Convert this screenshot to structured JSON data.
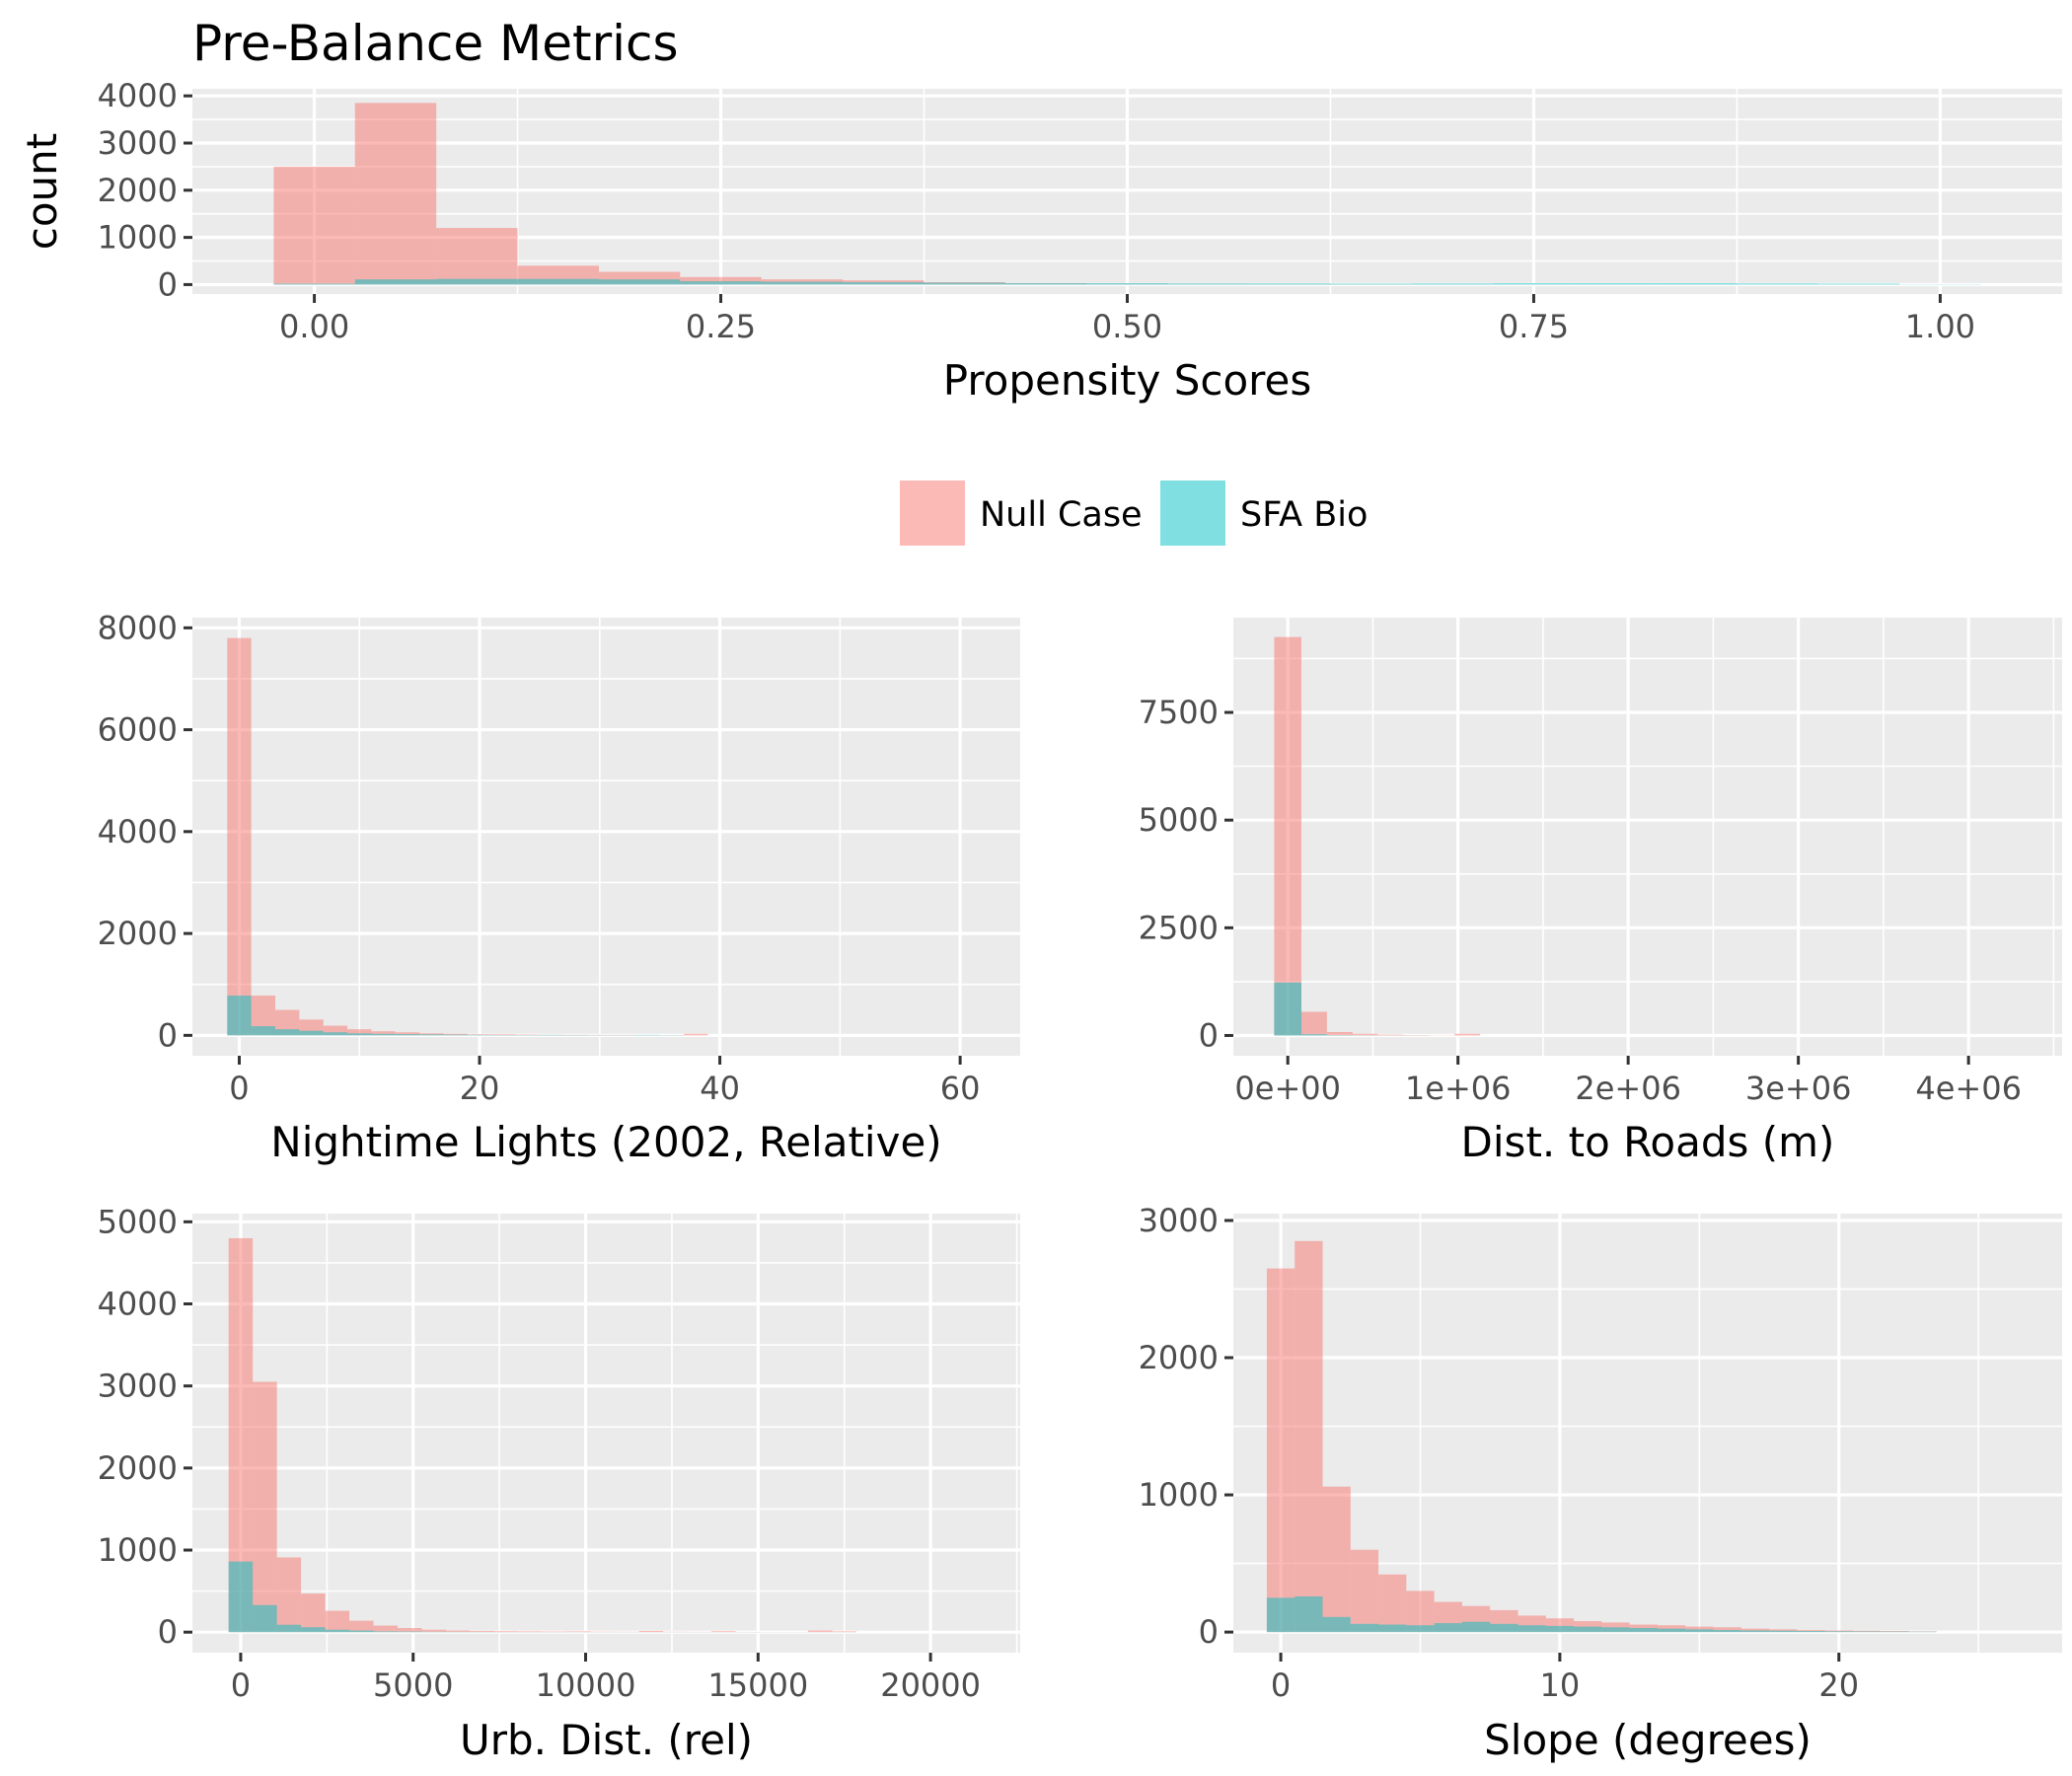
{
  "figure": {
    "title": "Pre-Balance Metrics",
    "legend": {
      "placement": "middle",
      "entries": [
        {
          "label": "Null Case",
          "color": "#F8766D"
        },
        {
          "label": "SFA Bio",
          "color": "#00BFC4"
        }
      ]
    }
  },
  "chart_data": [
    {
      "type": "bar",
      "subtype": "histogram",
      "xlabel": "Propensity Scores",
      "ylabel": "count",
      "xlim": [
        -0.075,
        1.075
      ],
      "ylim": [
        -200,
        4150
      ],
      "xticks": [
        0.0,
        0.25,
        0.5,
        0.75,
        1.0
      ],
      "xticklabels": [
        "0.00",
        "0.25",
        "0.50",
        "0.75",
        "1.00"
      ],
      "yticks": [
        0,
        1000,
        2000,
        3000,
        4000
      ],
      "yticklabels": [
        "0",
        "1000",
        "2000",
        "3000",
        "4000"
      ],
      "bin_edges": [
        -0.025,
        0.025,
        0.075,
        0.125,
        0.175,
        0.225,
        0.275,
        0.325,
        0.375,
        0.425,
        0.475,
        0.525,
        0.575,
        0.625,
        0.675,
        0.725,
        0.775,
        0.825,
        0.875,
        0.925,
        0.975,
        1.025
      ],
      "series": [
        {
          "name": "Null Case",
          "values": [
            2500,
            3850,
            1200,
            400,
            270,
            160,
            110,
            90,
            50,
            30,
            20,
            15,
            10,
            8,
            6,
            5,
            4,
            4,
            3,
            2,
            1
          ]
        },
        {
          "name": "SFA Bio",
          "values": [
            20,
            110,
            120,
            120,
            110,
            70,
            60,
            50,
            40,
            30,
            30,
            25,
            25,
            20,
            25,
            30,
            30,
            30,
            25,
            20,
            5
          ]
        }
      ]
    },
    {
      "type": "bar",
      "subtype": "histogram",
      "xlabel": "Nightime Lights (2002, Relative)",
      "ylabel": "",
      "xlim": [
        -3.9,
        65
      ],
      "ylim": [
        -400,
        8200
      ],
      "xticks": [
        0,
        20,
        40,
        60
      ],
      "xticklabels": [
        "0",
        "20",
        "40",
        "60"
      ],
      "yticks": [
        0,
        2000,
        4000,
        6000,
        8000
      ],
      "yticklabels": [
        "0",
        "2000",
        "4000",
        "6000",
        "8000"
      ],
      "bin_edges": [
        -1,
        1,
        3,
        5,
        7,
        9,
        11,
        13,
        15,
        17,
        19,
        21,
        23,
        25,
        27,
        29,
        31,
        33,
        35,
        37,
        39
      ],
      "series": [
        {
          "name": "Null Case",
          "values": [
            7800,
            780,
            500,
            310,
            190,
            120,
            80,
            60,
            40,
            30,
            20,
            20,
            15,
            10,
            10,
            10,
            10,
            5,
            5,
            30
          ]
        },
        {
          "name": "SFA Bio",
          "values": [
            780,
            180,
            120,
            90,
            60,
            40,
            30,
            25,
            20,
            15,
            10,
            8,
            6,
            10,
            8,
            5,
            5,
            10,
            5,
            0
          ]
        }
      ]
    },
    {
      "type": "bar",
      "subtype": "histogram",
      "xlabel": "Dist. to Roads (m)",
      "ylabel": "",
      "xlim": [
        -320000,
        4550000
      ],
      "ylim": [
        -470,
        9700
      ],
      "xticks": [
        0,
        1000000,
        2000000,
        3000000,
        4000000
      ],
      "xticklabels": [
        "0e+00",
        "1e+06",
        "2e+06",
        "3e+06",
        "4e+06"
      ],
      "yticks": [
        0,
        2500,
        5000,
        7500
      ],
      "yticklabels": [
        "0",
        "2500",
        "5000",
        "7500"
      ],
      "bin_edges": [
        -80000,
        80000,
        230000,
        380000,
        530000,
        680000,
        830000,
        980000,
        1130000
      ],
      "series": [
        {
          "name": "Null Case",
          "values": [
            9250,
            550,
            80,
            40,
            20,
            10,
            5,
            40
          ]
        },
        {
          "name": "SFA Bio",
          "values": [
            1230,
            30,
            10,
            5,
            3,
            2,
            0,
            0
          ]
        }
      ]
    },
    {
      "type": "bar",
      "subtype": "histogram",
      "xlabel": "Urb. Dist. (rel)",
      "ylabel": "",
      "xlim": [
        -1400,
        22600
      ],
      "ylim": [
        -250,
        5100
      ],
      "xticks": [
        0,
        5000,
        10000,
        15000,
        20000
      ],
      "xticklabels": [
        "0",
        "5000",
        "10000",
        "15000",
        "20000"
      ],
      "yticks": [
        0,
        1000,
        2000,
        3000,
        4000,
        5000
      ],
      "yticklabels": [
        "0",
        "1000",
        "2000",
        "3000",
        "4000",
        "5000"
      ],
      "bin_edges": [
        -350,
        350,
        1050,
        1750,
        2450,
        3150,
        3850,
        4550,
        5250,
        5950,
        6650,
        7350,
        8050,
        8750,
        9450,
        10150,
        10850,
        11550,
        12250,
        12950,
        13650,
        14350,
        15050,
        15750,
        16450,
        17150,
        17850
      ],
      "series": [
        {
          "name": "Null Case",
          "values": [
            4800,
            3050,
            910,
            470,
            260,
            140,
            80,
            50,
            30,
            20,
            15,
            12,
            10,
            8,
            10,
            6,
            5,
            15,
            5,
            4,
            12,
            3,
            2,
            2,
            20,
            10
          ]
        },
        {
          "name": "SFA Bio",
          "values": [
            860,
            330,
            90,
            60,
            30,
            20,
            10,
            8,
            5,
            4,
            3,
            2,
            2,
            2,
            1,
            1,
            1,
            1,
            1,
            1,
            1,
            1,
            1,
            1,
            1,
            1
          ]
        }
      ]
    },
    {
      "type": "bar",
      "subtype": "histogram",
      "xlabel": "Slope (degrees)",
      "ylabel": "",
      "xlim": [
        -1.7,
        28
      ],
      "ylim": [
        -150,
        3050
      ],
      "xticks": [
        0,
        10,
        20
      ],
      "xticklabels": [
        "0",
        "10",
        "20"
      ],
      "yticks": [
        0,
        1000,
        2000,
        3000
      ],
      "yticklabels": [
        "0",
        "1000",
        "2000",
        "3000"
      ],
      "bin_edges": [
        -0.5,
        0.5,
        1.5,
        2.5,
        3.5,
        4.5,
        5.5,
        6.5,
        7.5,
        8.5,
        9.5,
        10.5,
        11.5,
        12.5,
        13.5,
        14.5,
        15.5,
        16.5,
        17.5,
        18.5,
        19.5,
        20.5,
        21.5,
        22.5,
        23.5
      ],
      "series": [
        {
          "name": "Null Case",
          "values": [
            2650,
            2850,
            1060,
            600,
            420,
            300,
            220,
            190,
            160,
            120,
            100,
            80,
            70,
            55,
            50,
            40,
            35,
            25,
            20,
            15,
            12,
            10,
            8,
            5
          ]
        },
        {
          "name": "SFA Bio",
          "values": [
            250,
            260,
            110,
            60,
            55,
            50,
            65,
            75,
            60,
            50,
            45,
            40,
            35,
            30,
            25,
            20,
            15,
            12,
            10,
            8,
            6,
            5,
            4,
            3
          ]
        }
      ]
    }
  ]
}
